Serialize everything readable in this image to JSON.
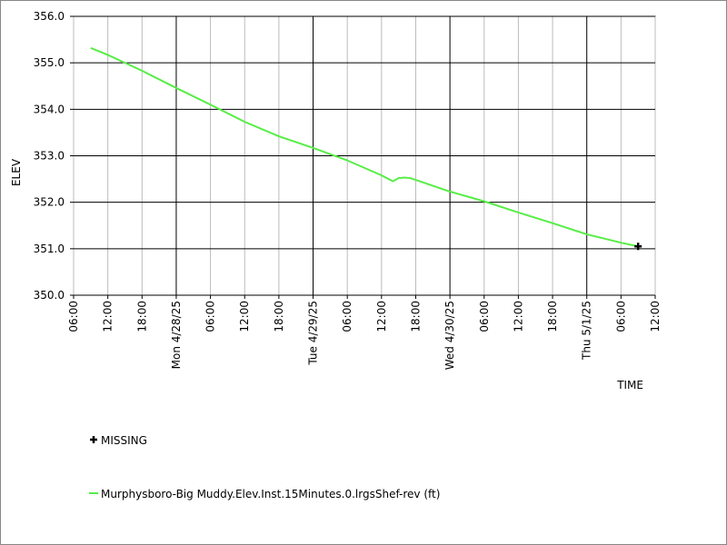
{
  "chart_data": {
    "type": "line",
    "ylabel": "ELEV",
    "xlabel": "TIME",
    "ylim": [
      350,
      356
    ],
    "yticks": [
      {
        "value": 350,
        "label": "350.0"
      },
      {
        "value": 351,
        "label": "351.0"
      },
      {
        "value": 352,
        "label": "352.0"
      },
      {
        "value": 353,
        "label": "353.0"
      },
      {
        "value": 354,
        "label": "354.0"
      },
      {
        "value": 355,
        "label": "355.0"
      },
      {
        "value": 356,
        "label": "356.0"
      }
    ],
    "xlim": [
      6,
      108
    ],
    "xticks": [
      {
        "value": 6,
        "label": "06:00"
      },
      {
        "value": 12,
        "label": "12:00"
      },
      {
        "value": 18,
        "label": "18:00"
      },
      {
        "value": 24,
        "label": "Mon 4/28/25"
      },
      {
        "value": 30,
        "label": "06:00"
      },
      {
        "value": 36,
        "label": "12:00"
      },
      {
        "value": 42,
        "label": "18:00"
      },
      {
        "value": 48,
        "label": "Tue 4/29/25"
      },
      {
        "value": 54,
        "label": "06:00"
      },
      {
        "value": 60,
        "label": "12:00"
      },
      {
        "value": 66,
        "label": "18:00"
      },
      {
        "value": 72,
        "label": "Wed 4/30/25"
      },
      {
        "value": 78,
        "label": "06:00"
      },
      {
        "value": 84,
        "label": "12:00"
      },
      {
        "value": 90,
        "label": "18:00"
      },
      {
        "value": 96,
        "label": "Thu 5/1/25"
      },
      {
        "value": 102,
        "label": "06:00"
      },
      {
        "value": 108,
        "label": "12:00"
      }
    ],
    "grid": true,
    "x": [
      9,
      12,
      18,
      24,
      30,
      36,
      42,
      48,
      54,
      60,
      62,
      63,
      64,
      65,
      66,
      72,
      78,
      84,
      90,
      96,
      102,
      105
    ],
    "series": [
      {
        "name": "Murphysboro-Big Muddy.Elev.Inst.15Minutes.0.lrgsShef-rev (ft)",
        "color": "#55ee44",
        "values": [
          355.32,
          355.17,
          354.83,
          354.46,
          354.1,
          353.73,
          353.42,
          353.17,
          352.9,
          352.58,
          352.45,
          352.52,
          352.53,
          352.52,
          352.48,
          352.23,
          352.02,
          351.78,
          351.55,
          351.31,
          351.13,
          351.05
        ]
      },
      {
        "name": "MISSING",
        "color": "#000000",
        "marker": "plus",
        "values": [
          null,
          null,
          null,
          null,
          null,
          null,
          null,
          null,
          null,
          null,
          null,
          null,
          null,
          null,
          null,
          null,
          null,
          null,
          null,
          null,
          null,
          351.05
        ]
      }
    ]
  }
}
